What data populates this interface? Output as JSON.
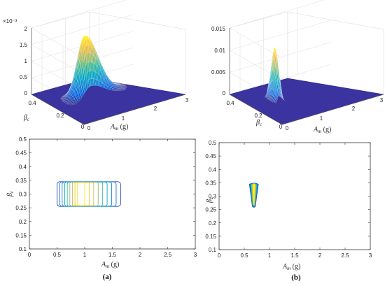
{
  "captions": {
    "a": "(a)",
    "b": "(b)"
  },
  "chart_data": [
    {
      "id": "a-surface",
      "type": "surface",
      "z_exponent_label": "×10⁻³",
      "zticks": [
        "0",
        "0.5",
        "1",
        "1.5",
        "2"
      ],
      "xticks": [
        "0",
        "1",
        "2",
        "3"
      ],
      "yticks": [
        "0",
        "0.2",
        "0.4"
      ],
      "xlabel": {
        "main": "A",
        "sub": "m",
        "tail": " (g)"
      },
      "ylabel": {
        "main": "β",
        "sub": "c"
      },
      "zlim": [
        0,
        0.002
      ],
      "peak_z": 0.00185,
      "peak_am": 0.95
    },
    {
      "id": "a-contour",
      "type": "contour",
      "xlim": [
        0,
        3
      ],
      "ylim": [
        0.1,
        0.5
      ],
      "xticks": [
        "0",
        "0.5",
        "1",
        "1.5",
        "2",
        "2.5",
        "3"
      ],
      "yticks": [
        "0.1",
        "0.15",
        "0.2",
        "0.25",
        "0.3",
        "0.35",
        "0.4",
        "0.45",
        "0.5"
      ],
      "xlabel": {
        "main": "A",
        "sub": "m",
        "tail": " (g)"
      },
      "ylabel": {
        "main": "β",
        "sub": "c"
      },
      "region": {
        "am_min": 0.5,
        "am_max": 1.65,
        "beta_min": 0.255,
        "beta_max": 0.345
      },
      "levels": 9
    },
    {
      "id": "b-surface",
      "type": "surface",
      "zticks": [
        "0",
        "0.005",
        "0.01",
        "0.015"
      ],
      "xticks": [
        "0",
        "1",
        "2",
        "3"
      ],
      "yticks": [
        "0",
        "0.2",
        "0.4"
      ],
      "xlabel": {
        "main": "A",
        "sub": "m",
        "tail": " (g)"
      },
      "ylabel": {
        "main": "β",
        "sub": "c"
      },
      "zlim": [
        0,
        0.015
      ],
      "peak_z": 0.0118,
      "peak_am": 0.72
    },
    {
      "id": "b-contour",
      "type": "contour",
      "xlim": [
        0,
        3
      ],
      "ylim": [
        0.1,
        0.5
      ],
      "xticks": [
        "0",
        "0.5",
        "1",
        "1.5",
        "2",
        "2.5",
        "3"
      ],
      "yticks": [
        "0.1",
        "0.15",
        "0.2",
        "0.25",
        "0.3",
        "0.35",
        "0.4",
        "0.45",
        "0.5"
      ],
      "xlabel": {
        "main": "A",
        "sub": "m",
        "tail": " (g)"
      },
      "ylabel": {
        "main": "β",
        "sub": "c"
      },
      "region": {
        "am_min": 0.6,
        "am_max": 0.78,
        "beta_min": 0.262,
        "beta_max": 0.345
      },
      "levels": 8
    }
  ],
  "colors": {
    "floor": "#3a33a0",
    "floor_edge": "#2a2480",
    "parula": [
      "#352a87",
      "#0363e1",
      "#1485d4",
      "#06a7c6",
      "#38b99e",
      "#92bf73",
      "#d9ba56",
      "#fcce2e",
      "#f9fb0e"
    ]
  }
}
